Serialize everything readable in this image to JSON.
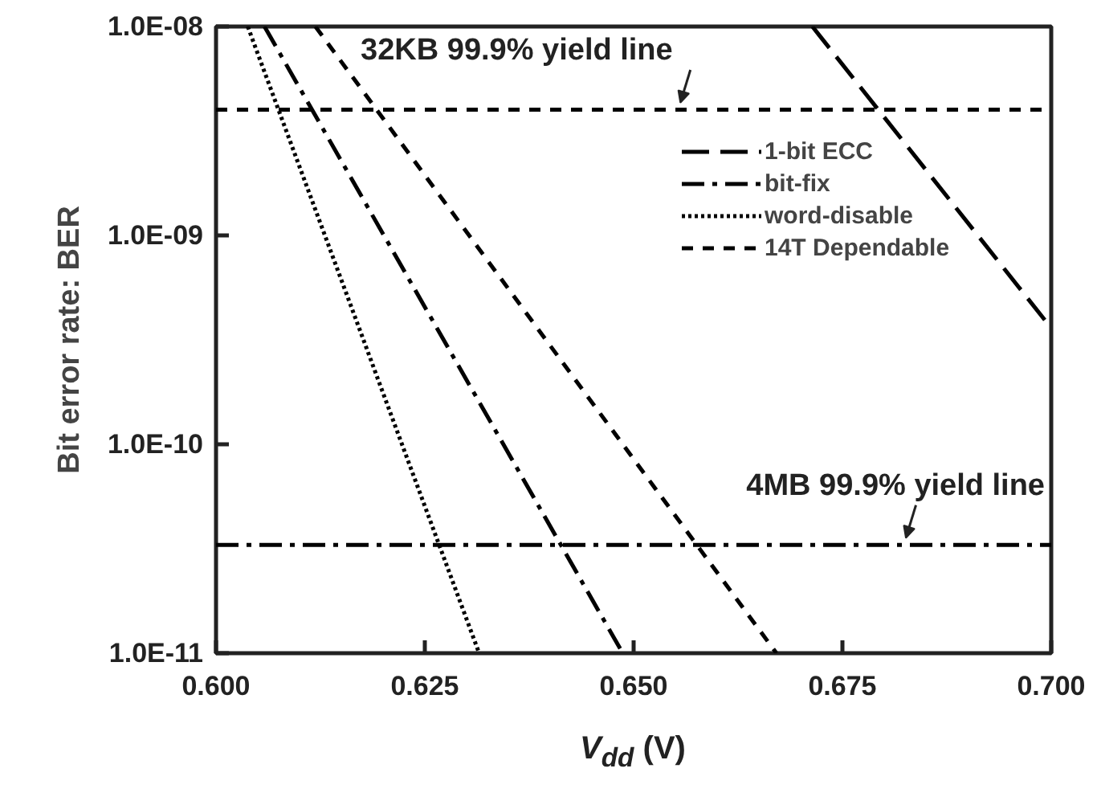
{
  "chart_data": {
    "type": "line",
    "xlabel": "V$_{dd}$ (V)",
    "ylabel": "Bit error rate: BER",
    "xlim": [
      0.6,
      0.7
    ],
    "xticks": [
      {
        "value": 0.6,
        "label": "0.600"
      },
      {
        "value": 0.625,
        "label": "0.625"
      },
      {
        "value": 0.65,
        "label": "0.650"
      },
      {
        "value": 0.675,
        "label": "0.675"
      },
      {
        "value": 0.7,
        "label": "0.700"
      }
    ],
    "ylim": [
      1e-11,
      1e-08
    ],
    "log": "y",
    "yticks": [
      {
        "value": 1e-11,
        "label": "1.0E-11"
      },
      {
        "value": 1e-10,
        "label": "1.0E-10"
      },
      {
        "value": 1e-09,
        "label": "1.0E-09"
      },
      {
        "value": 1e-08,
        "label": "1.0E-08"
      }
    ],
    "legend": "top right",
    "grid": false,
    "marker": "none",
    "series": [
      {
        "name": "1-bit ECC",
        "color": "#000000",
        "line_style": "longdash",
        "x": [
          0.6714,
          0.7
        ],
        "values": [
          1e-08,
          3.6e-10
        ]
      },
      {
        "name": "bit-fix",
        "color": "#000000",
        "line_style": "dashdot",
        "x": [
          0.6058,
          0.6487
        ],
        "values": [
          1e-08,
          1e-11
        ]
      },
      {
        "name": "word-disable",
        "color": "#000000",
        "line_style": "dotted",
        "x": [
          0.6038,
          0.6315
        ],
        "values": [
          1e-08,
          1e-11
        ]
      },
      {
        "name": "14T Dependable",
        "color": "#000000",
        "line_style": "dashed",
        "x": [
          0.6119,
          0.6671
        ],
        "values": [
          1e-08,
          1e-11
        ]
      }
    ],
    "ref_lines": [
      {
        "axis": "y",
        "value": 4e-09,
        "label": "32KB 99.9% yield line",
        "color": "#000000",
        "line_style": "dashed"
      },
      {
        "axis": "y",
        "value": 3.3e-11,
        "label": "4MB 99.9% yield line",
        "color": "#000000",
        "line_style": "dashdot"
      }
    ]
  }
}
